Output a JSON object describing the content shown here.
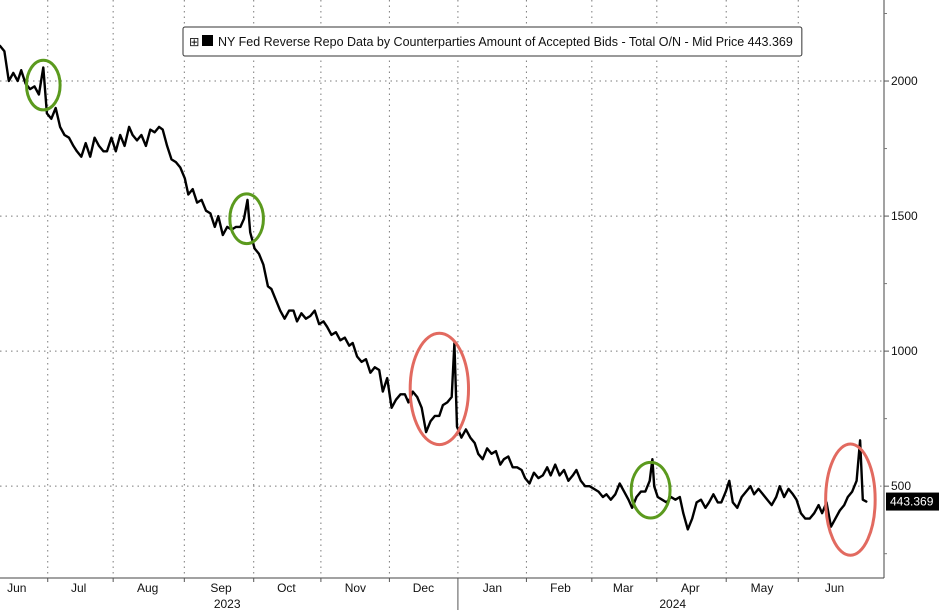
{
  "chart_data": {
    "type": "line",
    "legend": {
      "label": "NY Fed Reverse Repo Data by Counterparties Amount of Accepted Bids - Total O/N - Mid Price 443.369",
      "placement": "top"
    },
    "last_value_label": "443.369",
    "y_ticks": [
      "500",
      "1000",
      "1500",
      "2000"
    ],
    "ylim": [
      160,
      2300
    ],
    "xlim": [
      0,
      100
    ],
    "grid": true,
    "months": [
      {
        "label": "Jun",
        "x": 1.9
      },
      {
        "label": "Jul",
        "x": 8.9
      },
      {
        "label": "Aug",
        "x": 16.7
      },
      {
        "label": "Sep",
        "x": 25.0
      },
      {
        "label": "Oct",
        "x": 32.4
      },
      {
        "label": "Nov",
        "x": 40.2
      },
      {
        "label": "Dec",
        "x": 47.9
      },
      {
        "label": "Jan",
        "x": 55.7
      },
      {
        "label": "Feb",
        "x": 63.4
      },
      {
        "label": "Mar",
        "x": 70.5
      },
      {
        "label": "Apr",
        "x": 78.1
      },
      {
        "label": "May",
        "x": 86.2
      },
      {
        "label": "Jun",
        "x": 94.4
      }
    ],
    "years": [
      {
        "label": "2023",
        "x": 25.7
      },
      {
        "label": "2024",
        "x": 76.1
      }
    ],
    "series": [
      {
        "color": "#000000",
        "points": [
          [
            0.0,
            2130
          ],
          [
            0.5,
            2110
          ],
          [
            1.0,
            2000
          ],
          [
            1.5,
            2030
          ],
          [
            2.0,
            2000
          ],
          [
            2.4,
            2040
          ],
          [
            2.9,
            1990
          ],
          [
            3.4,
            1970
          ],
          [
            3.9,
            1980
          ],
          [
            4.4,
            1950
          ],
          [
            4.9,
            2050
          ],
          [
            5.3,
            1880
          ],
          [
            5.8,
            1860
          ],
          [
            6.3,
            1900
          ],
          [
            6.8,
            1830
          ],
          [
            7.3,
            1800
          ],
          [
            7.8,
            1790
          ],
          [
            8.3,
            1760
          ],
          [
            8.7,
            1740
          ],
          [
            9.2,
            1720
          ],
          [
            9.7,
            1770
          ],
          [
            10.2,
            1720
          ],
          [
            10.7,
            1790
          ],
          [
            11.2,
            1760
          ],
          [
            11.7,
            1740
          ],
          [
            12.1,
            1740
          ],
          [
            12.6,
            1790
          ],
          [
            13.1,
            1740
          ],
          [
            13.6,
            1800
          ],
          [
            14.1,
            1760
          ],
          [
            14.6,
            1830
          ],
          [
            15.0,
            1800
          ],
          [
            15.5,
            1780
          ],
          [
            16.0,
            1800
          ],
          [
            16.5,
            1760
          ],
          [
            17.0,
            1820
          ],
          [
            17.5,
            1810
          ],
          [
            18.0,
            1830
          ],
          [
            18.4,
            1820
          ],
          [
            18.9,
            1760
          ],
          [
            19.4,
            1710
          ],
          [
            19.9,
            1700
          ],
          [
            20.4,
            1680
          ],
          [
            20.9,
            1640
          ],
          [
            21.3,
            1580
          ],
          [
            21.8,
            1600
          ],
          [
            22.3,
            1550
          ],
          [
            22.8,
            1560
          ],
          [
            23.3,
            1520
          ],
          [
            23.8,
            1510
          ],
          [
            24.3,
            1460
          ],
          [
            24.7,
            1500
          ],
          [
            25.2,
            1430
          ],
          [
            25.7,
            1460
          ],
          [
            26.2,
            1450
          ],
          [
            26.7,
            1460
          ],
          [
            27.2,
            1460
          ],
          [
            27.6,
            1490
          ],
          [
            28.0,
            1560
          ],
          [
            28.3,
            1440
          ],
          [
            28.8,
            1380
          ],
          [
            29.3,
            1360
          ],
          [
            29.8,
            1320
          ],
          [
            30.3,
            1240
          ],
          [
            30.7,
            1230
          ],
          [
            31.2,
            1190
          ],
          [
            31.7,
            1150
          ],
          [
            32.2,
            1120
          ],
          [
            32.7,
            1150
          ],
          [
            33.2,
            1150
          ],
          [
            33.6,
            1110
          ],
          [
            34.1,
            1140
          ],
          [
            34.6,
            1120
          ],
          [
            35.1,
            1130
          ],
          [
            35.6,
            1150
          ],
          [
            36.1,
            1100
          ],
          [
            36.6,
            1110
          ],
          [
            37.0,
            1090
          ],
          [
            37.5,
            1060
          ],
          [
            38.0,
            1070
          ],
          [
            38.5,
            1040
          ],
          [
            39.0,
            1050
          ],
          [
            39.5,
            1020
          ],
          [
            39.9,
            1030
          ],
          [
            40.4,
            980
          ],
          [
            40.9,
            960
          ],
          [
            41.4,
            970
          ],
          [
            41.9,
            920
          ],
          [
            42.4,
            940
          ],
          [
            42.9,
            930
          ],
          [
            43.3,
            850
          ],
          [
            43.8,
            900
          ],
          [
            44.3,
            790
          ],
          [
            44.8,
            820
          ],
          [
            45.3,
            840
          ],
          [
            45.8,
            840
          ],
          [
            46.2,
            810
          ],
          [
            46.7,
            850
          ],
          [
            47.2,
            830
          ],
          [
            47.7,
            790
          ],
          [
            48.2,
            700
          ],
          [
            48.7,
            740
          ],
          [
            49.2,
            760
          ],
          [
            49.7,
            760
          ],
          [
            50.1,
            800
          ],
          [
            50.6,
            810
          ],
          [
            51.1,
            830
          ],
          [
            51.4,
            1030
          ],
          [
            51.7,
            720
          ],
          [
            52.2,
            680
          ],
          [
            52.7,
            710
          ],
          [
            53.2,
            680
          ],
          [
            53.7,
            660
          ],
          [
            54.1,
            620
          ],
          [
            54.6,
            600
          ],
          [
            55.1,
            640
          ],
          [
            55.6,
            620
          ],
          [
            56.1,
            630
          ],
          [
            56.6,
            580
          ],
          [
            57.0,
            600
          ],
          [
            57.5,
            610
          ],
          [
            58.0,
            570
          ],
          [
            58.5,
            570
          ],
          [
            59.0,
            560
          ],
          [
            59.4,
            530
          ],
          [
            59.9,
            510
          ],
          [
            60.4,
            550
          ],
          [
            60.9,
            530
          ],
          [
            61.4,
            540
          ],
          [
            61.9,
            570
          ],
          [
            62.3,
            540
          ],
          [
            62.8,
            580
          ],
          [
            63.3,
            540
          ],
          [
            63.8,
            560
          ],
          [
            64.3,
            520
          ],
          [
            64.8,
            540
          ],
          [
            65.2,
            560
          ],
          [
            65.7,
            520
          ],
          [
            66.2,
            500
          ],
          [
            66.7,
            500
          ],
          [
            67.2,
            490
          ],
          [
            67.7,
            480
          ],
          [
            68.2,
            460
          ],
          [
            68.6,
            470
          ],
          [
            69.1,
            450
          ],
          [
            69.6,
            470
          ],
          [
            70.1,
            510
          ],
          [
            70.6,
            480
          ],
          [
            71.1,
            450
          ],
          [
            71.5,
            420
          ],
          [
            72.0,
            460
          ],
          [
            72.5,
            480
          ],
          [
            73.0,
            480
          ],
          [
            73.5,
            520
          ],
          [
            73.8,
            600
          ],
          [
            74.0,
            500
          ],
          [
            74.4,
            460
          ],
          [
            74.9,
            450
          ],
          [
            75.4,
            440
          ],
          [
            75.9,
            460
          ],
          [
            76.4,
            450
          ],
          [
            76.9,
            460
          ],
          [
            77.3,
            400
          ],
          [
            77.8,
            340
          ],
          [
            78.3,
            380
          ],
          [
            78.8,
            440
          ],
          [
            79.3,
            450
          ],
          [
            79.8,
            420
          ],
          [
            80.2,
            440
          ],
          [
            80.7,
            470
          ],
          [
            81.2,
            440
          ],
          [
            81.6,
            440
          ],
          [
            82.1,
            480
          ],
          [
            82.5,
            520
          ],
          [
            82.9,
            440
          ],
          [
            83.4,
            420
          ],
          [
            83.9,
            460
          ],
          [
            84.4,
            480
          ],
          [
            84.9,
            500
          ],
          [
            85.3,
            470
          ],
          [
            85.8,
            490
          ],
          [
            86.3,
            470
          ],
          [
            86.8,
            450
          ],
          [
            87.3,
            430
          ],
          [
            87.8,
            460
          ],
          [
            88.2,
            500
          ],
          [
            88.7,
            460
          ],
          [
            89.2,
            490
          ],
          [
            89.7,
            470
          ],
          [
            90.1,
            450
          ],
          [
            90.6,
            400
          ],
          [
            91.1,
            380
          ],
          [
            91.6,
            380
          ],
          [
            92.1,
            400
          ],
          [
            92.6,
            430
          ],
          [
            93.0,
            400
          ],
          [
            93.5,
            440
          ],
          [
            94.0,
            350
          ],
          [
            94.5,
            380
          ],
          [
            95.0,
            410
          ],
          [
            95.5,
            430
          ],
          [
            95.9,
            460
          ],
          [
            96.4,
            480
          ],
          [
            96.9,
            520
          ],
          [
            97.3,
            670
          ],
          [
            97.6,
            450
          ],
          [
            98.0,
            443
          ]
        ]
      }
    ],
    "annotations": [
      {
        "shape": "ellipse",
        "color": "#5b9a1e",
        "cx": 4.9,
        "cy": 1985,
        "rx": 1.9,
        "ry": 92
      },
      {
        "shape": "ellipse",
        "color": "#5b9a1e",
        "cx": 27.9,
        "cy": 1490,
        "rx": 1.9,
        "ry": 92
      },
      {
        "shape": "ellipse",
        "color": "#e26a60",
        "cx": 49.7,
        "cy": 860,
        "rx": 3.3,
        "ry": 206
      },
      {
        "shape": "ellipse",
        "color": "#5b9a1e",
        "cx": 73.6,
        "cy": 485,
        "rx": 2.2,
        "ry": 103
      },
      {
        "shape": "ellipse",
        "color": "#e26a60",
        "cx": 96.2,
        "cy": 450,
        "rx": 2.8,
        "ry": 206
      }
    ]
  }
}
